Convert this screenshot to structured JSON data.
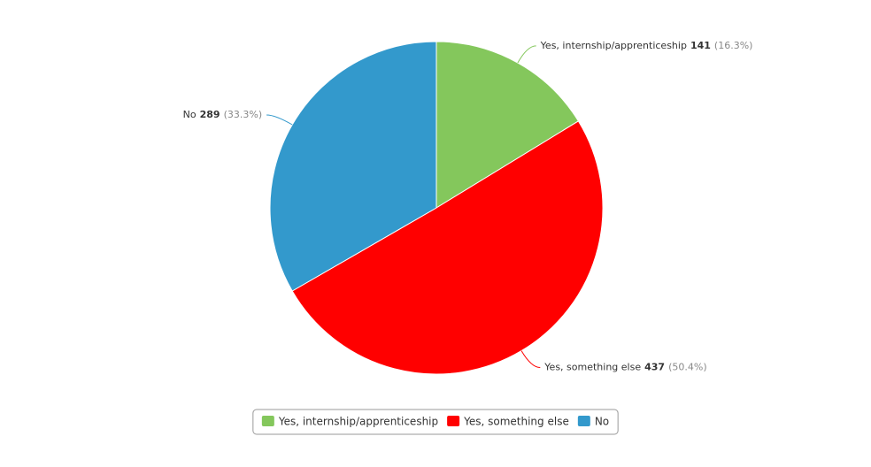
{
  "chart_data": {
    "type": "pie",
    "categories": [
      "Yes, internship/apprenticeship",
      "Yes, something else",
      "No"
    ],
    "values": [
      141,
      437,
      289
    ],
    "percent_labels": [
      "(16.3%)",
      "(50.4%)",
      "(33.3%)"
    ],
    "colors": [
      "#84c75c",
      "#ff0000",
      "#3399cc"
    ],
    "legend": "bottom"
  }
}
